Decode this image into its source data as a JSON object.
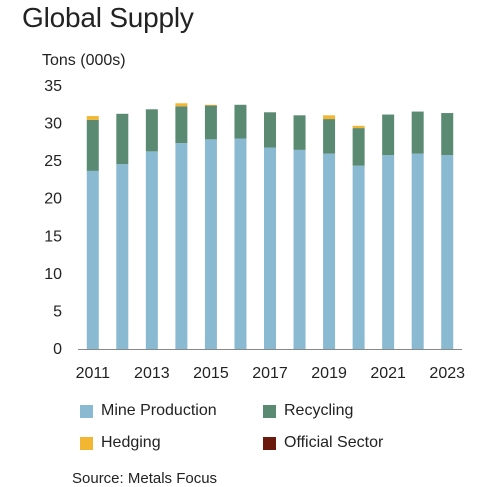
{
  "title": "Global Supply",
  "source": "Source: Metals Focus",
  "colors": {
    "mine_production": "#8ab9d2",
    "recycling": "#5b8a73",
    "hedging": "#f2b632",
    "official_sector": "#6b1a0e"
  },
  "chart_data": {
    "type": "bar",
    "stacked": true,
    "ylabel": "Tons (000s)",
    "xlabel": "",
    "ylim": [
      0,
      35
    ],
    "yticks": [
      0,
      5,
      10,
      15,
      20,
      25,
      30,
      35
    ],
    "grid": false,
    "legend_position": "bottom",
    "categories": [
      "2011",
      "2012",
      "2013",
      "2014",
      "2015",
      "2016",
      "2017",
      "2018",
      "2019",
      "2020",
      "2021",
      "2022",
      "2023"
    ],
    "x_tick_labels": [
      "2011",
      "2013",
      "2015",
      "2017",
      "2019",
      "2021",
      "2023"
    ],
    "series": [
      {
        "name": "Mine Production",
        "values": [
          23.7,
          24.6,
          26.3,
          27.4,
          27.9,
          28.0,
          26.8,
          26.5,
          26.0,
          24.4,
          25.8,
          26.0,
          25.8
        ]
      },
      {
        "name": "Recycling",
        "values": [
          6.8,
          6.7,
          5.6,
          4.9,
          4.5,
          4.5,
          4.7,
          4.6,
          4.6,
          5.0,
          5.4,
          5.6,
          5.6
        ]
      },
      {
        "name": "Hedging",
        "values": [
          0.5,
          0.0,
          0.0,
          0.4,
          0.1,
          0.0,
          0.0,
          0.0,
          0.5,
          0.3,
          0.0,
          0.0,
          0.0
        ]
      },
      {
        "name": "Official Sector",
        "values": [
          0,
          0,
          0,
          0,
          0,
          0,
          0,
          0,
          0,
          0,
          0,
          0,
          0
        ]
      }
    ]
  }
}
